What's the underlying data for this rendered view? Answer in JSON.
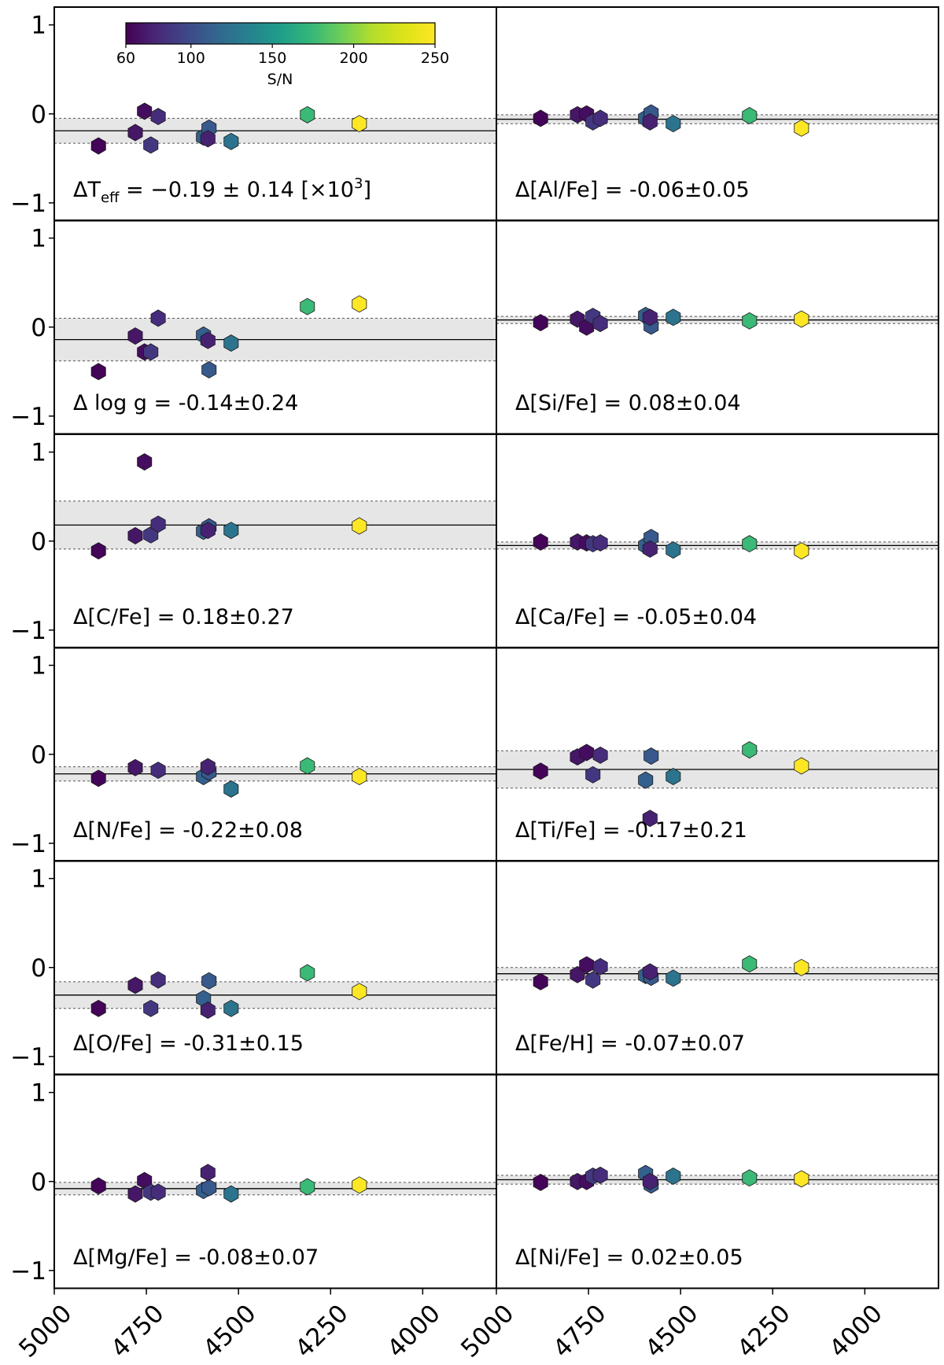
{
  "chart_data": {
    "type": "scatter",
    "layout": "6 rows x 2 columns of panels, shared x and y axes",
    "x_axis": {
      "range": [
        5000,
        3800
      ],
      "inverted": true,
      "ticks": [
        5000,
        4750,
        4500,
        4250,
        4000
      ],
      "tick_labels": [
        "5000",
        "4750",
        "4500",
        "4250",
        "4000"
      ]
    },
    "y_axis": {
      "range": [
        -1.2,
        1.2
      ],
      "ticks": [
        1,
        0,
        -1
      ],
      "tick_labels": [
        "1",
        "0",
        "−1"
      ]
    },
    "colorbar": {
      "label": "S/N",
      "range": [
        60,
        250
      ],
      "ticks": [
        60,
        100,
        150,
        200,
        250
      ],
      "tick_labels": [
        "60",
        "100",
        "150",
        "200",
        "250"
      ],
      "colormap": "viridis"
    },
    "teff_label": {
      "prefix": "ΔT",
      "sub": "eff",
      "text": " = −0.19 ± 0.14 [×10",
      "sup": "3",
      "suffix": "]"
    },
    "panels": [
      {
        "label": "",
        "mean": -0.19,
        "std": 0.14,
        "points": [
          {
            "x": 4880,
            "y": -0.36,
            "sn": 62
          },
          {
            "x": 4780,
            "y": -0.21,
            "sn": 70
          },
          {
            "x": 4755,
            "y": 0.03,
            "sn": 66
          },
          {
            "x": 4738,
            "y": -0.35,
            "sn": 88
          },
          {
            "x": 4718,
            "y": -0.03,
            "sn": 82
          },
          {
            "x": 4595,
            "y": -0.26,
            "sn": 112
          },
          {
            "x": 4580,
            "y": -0.16,
            "sn": 108
          },
          {
            "x": 4583,
            "y": -0.28,
            "sn": 76
          },
          {
            "x": 4520,
            "y": -0.31,
            "sn": 125
          },
          {
            "x": 4313,
            "y": -0.01,
            "sn": 176
          },
          {
            "x": 4172,
            "y": -0.11,
            "sn": 250
          }
        ]
      },
      {
        "label": "Δ[Al/Fe] = -0.06±0.05",
        "mean": -0.06,
        "std": 0.05,
        "points": [
          {
            "x": 4880,
            "y": -0.05,
            "sn": 62
          },
          {
            "x": 4780,
            "y": -0.01,
            "sn": 70
          },
          {
            "x": 4755,
            "y": 0.0,
            "sn": 66
          },
          {
            "x": 4738,
            "y": -0.09,
            "sn": 88
          },
          {
            "x": 4718,
            "y": -0.05,
            "sn": 82
          },
          {
            "x": 4595,
            "y": -0.05,
            "sn": 112
          },
          {
            "x": 4580,
            "y": 0.01,
            "sn": 108
          },
          {
            "x": 4583,
            "y": -0.09,
            "sn": 76
          },
          {
            "x": 4520,
            "y": -0.11,
            "sn": 125
          },
          {
            "x": 4313,
            "y": -0.02,
            "sn": 176
          },
          {
            "x": 4172,
            "y": -0.16,
            "sn": 250
          }
        ]
      },
      {
        "label": "Δ log g = -0.14±0.24",
        "mean": -0.14,
        "std": 0.24,
        "points": [
          {
            "x": 4880,
            "y": -0.5,
            "sn": 62
          },
          {
            "x": 4780,
            "y": -0.1,
            "sn": 70
          },
          {
            "x": 4755,
            "y": -0.28,
            "sn": 66
          },
          {
            "x": 4738,
            "y": -0.28,
            "sn": 88
          },
          {
            "x": 4718,
            "y": 0.1,
            "sn": 82
          },
          {
            "x": 4595,
            "y": -0.09,
            "sn": 112
          },
          {
            "x": 4580,
            "y": -0.48,
            "sn": 108
          },
          {
            "x": 4583,
            "y": -0.15,
            "sn": 76
          },
          {
            "x": 4520,
            "y": -0.18,
            "sn": 125
          },
          {
            "x": 4313,
            "y": 0.23,
            "sn": 176
          },
          {
            "x": 4172,
            "y": 0.26,
            "sn": 250
          }
        ]
      },
      {
        "label": "Δ[Si/Fe] = 0.08±0.04",
        "mean": 0.08,
        "std": 0.04,
        "points": [
          {
            "x": 4880,
            "y": 0.05,
            "sn": 62
          },
          {
            "x": 4780,
            "y": 0.09,
            "sn": 70
          },
          {
            "x": 4755,
            "y": 0.0,
            "sn": 66
          },
          {
            "x": 4738,
            "y": 0.12,
            "sn": 88
          },
          {
            "x": 4718,
            "y": 0.04,
            "sn": 82
          },
          {
            "x": 4595,
            "y": 0.13,
            "sn": 112
          },
          {
            "x": 4580,
            "y": 0.01,
            "sn": 108
          },
          {
            "x": 4583,
            "y": 0.11,
            "sn": 76
          },
          {
            "x": 4520,
            "y": 0.11,
            "sn": 125
          },
          {
            "x": 4313,
            "y": 0.07,
            "sn": 176
          },
          {
            "x": 4172,
            "y": 0.09,
            "sn": 250
          }
        ]
      },
      {
        "label": "Δ[C/Fe] = 0.18±0.27",
        "mean": 0.18,
        "std": 0.27,
        "points": [
          {
            "x": 4880,
            "y": -0.11,
            "sn": 62
          },
          {
            "x": 4780,
            "y": 0.06,
            "sn": 70
          },
          {
            "x": 4755,
            "y": 0.89,
            "sn": 66
          },
          {
            "x": 4738,
            "y": 0.07,
            "sn": 88
          },
          {
            "x": 4718,
            "y": 0.19,
            "sn": 82
          },
          {
            "x": 4595,
            "y": 0.11,
            "sn": 112
          },
          {
            "x": 4580,
            "y": 0.16,
            "sn": 108
          },
          {
            "x": 4583,
            "y": 0.12,
            "sn": 76
          },
          {
            "x": 4520,
            "y": 0.12,
            "sn": 125
          },
          {
            "x": 4172,
            "y": 0.17,
            "sn": 250
          }
        ]
      },
      {
        "label": "Δ[Ca/Fe] = -0.05±0.04",
        "mean": -0.05,
        "std": 0.04,
        "points": [
          {
            "x": 4880,
            "y": -0.01,
            "sn": 62
          },
          {
            "x": 4780,
            "y": -0.01,
            "sn": 70
          },
          {
            "x": 4755,
            "y": -0.02,
            "sn": 66
          },
          {
            "x": 4738,
            "y": -0.03,
            "sn": 88
          },
          {
            "x": 4718,
            "y": -0.02,
            "sn": 82
          },
          {
            "x": 4595,
            "y": -0.05,
            "sn": 112
          },
          {
            "x": 4580,
            "y": 0.04,
            "sn": 108
          },
          {
            "x": 4583,
            "y": -0.09,
            "sn": 76
          },
          {
            "x": 4520,
            "y": -0.1,
            "sn": 125
          },
          {
            "x": 4313,
            "y": -0.03,
            "sn": 176
          },
          {
            "x": 4172,
            "y": -0.11,
            "sn": 250
          }
        ]
      },
      {
        "label": "Δ[N/Fe] = -0.22±0.08",
        "mean": -0.22,
        "std": 0.08,
        "points": [
          {
            "x": 4880,
            "y": -0.27,
            "sn": 62
          },
          {
            "x": 4780,
            "y": -0.15,
            "sn": 70
          },
          {
            "x": 4718,
            "y": -0.18,
            "sn": 82
          },
          {
            "x": 4595,
            "y": -0.25,
            "sn": 112
          },
          {
            "x": 4580,
            "y": -0.2,
            "sn": 108
          },
          {
            "x": 4583,
            "y": -0.14,
            "sn": 76
          },
          {
            "x": 4520,
            "y": -0.39,
            "sn": 125
          },
          {
            "x": 4313,
            "y": -0.13,
            "sn": 176
          },
          {
            "x": 4172,
            "y": -0.25,
            "sn": 250
          }
        ]
      },
      {
        "label": "Δ[Ti/Fe] = -0.17±0.21",
        "mean": -0.17,
        "std": 0.21,
        "points": [
          {
            "x": 4880,
            "y": -0.19,
            "sn": 62
          },
          {
            "x": 4780,
            "y": -0.03,
            "sn": 70
          },
          {
            "x": 4755,
            "y": 0.02,
            "sn": 66
          },
          {
            "x": 4738,
            "y": -0.23,
            "sn": 88
          },
          {
            "x": 4718,
            "y": -0.01,
            "sn": 82
          },
          {
            "x": 4595,
            "y": -0.29,
            "sn": 112
          },
          {
            "x": 4580,
            "y": -0.02,
            "sn": 108
          },
          {
            "x": 4583,
            "y": -0.72,
            "sn": 76
          },
          {
            "x": 4520,
            "y": -0.25,
            "sn": 125
          },
          {
            "x": 4313,
            "y": 0.05,
            "sn": 176
          },
          {
            "x": 4172,
            "y": -0.13,
            "sn": 250
          }
        ]
      },
      {
        "label": "Δ[O/Fe] = -0.31±0.15",
        "mean": -0.31,
        "std": 0.15,
        "points": [
          {
            "x": 4880,
            "y": -0.46,
            "sn": 62
          },
          {
            "x": 4780,
            "y": -0.2,
            "sn": 70
          },
          {
            "x": 4738,
            "y": -0.46,
            "sn": 88
          },
          {
            "x": 4718,
            "y": -0.14,
            "sn": 82
          },
          {
            "x": 4595,
            "y": -0.35,
            "sn": 112
          },
          {
            "x": 4580,
            "y": -0.15,
            "sn": 108
          },
          {
            "x": 4583,
            "y": -0.48,
            "sn": 76
          },
          {
            "x": 4520,
            "y": -0.46,
            "sn": 125
          },
          {
            "x": 4313,
            "y": -0.06,
            "sn": 176
          },
          {
            "x": 4172,
            "y": -0.27,
            "sn": 250
          }
        ]
      },
      {
        "label": "Δ[Fe/H] = -0.07±0.07",
        "mean": -0.07,
        "std": 0.07,
        "points": [
          {
            "x": 4880,
            "y": -0.16,
            "sn": 62
          },
          {
            "x": 4780,
            "y": -0.08,
            "sn": 70
          },
          {
            "x": 4755,
            "y": 0.03,
            "sn": 66
          },
          {
            "x": 4738,
            "y": -0.14,
            "sn": 88
          },
          {
            "x": 4718,
            "y": 0.01,
            "sn": 82
          },
          {
            "x": 4595,
            "y": -0.09,
            "sn": 112
          },
          {
            "x": 4580,
            "y": -0.11,
            "sn": 108
          },
          {
            "x": 4583,
            "y": -0.05,
            "sn": 76
          },
          {
            "x": 4520,
            "y": -0.12,
            "sn": 125
          },
          {
            "x": 4313,
            "y": 0.04,
            "sn": 176
          },
          {
            "x": 4172,
            "y": 0.0,
            "sn": 250
          }
        ]
      },
      {
        "label": "Δ[Mg/Fe] = -0.08±0.07",
        "mean": -0.08,
        "std": 0.07,
        "points": [
          {
            "x": 4880,
            "y": -0.05,
            "sn": 62
          },
          {
            "x": 4780,
            "y": -0.14,
            "sn": 70
          },
          {
            "x": 4755,
            "y": 0.01,
            "sn": 66
          },
          {
            "x": 4738,
            "y": -0.12,
            "sn": 88
          },
          {
            "x": 4718,
            "y": -0.12,
            "sn": 82
          },
          {
            "x": 4595,
            "y": -0.1,
            "sn": 112
          },
          {
            "x": 4580,
            "y": -0.07,
            "sn": 108
          },
          {
            "x": 4583,
            "y": 0.1,
            "sn": 76
          },
          {
            "x": 4520,
            "y": -0.14,
            "sn": 125
          },
          {
            "x": 4313,
            "y": -0.06,
            "sn": 176
          },
          {
            "x": 4172,
            "y": -0.04,
            "sn": 250
          }
        ]
      },
      {
        "label": "Δ[Ni/Fe] = 0.02±0.05",
        "mean": 0.02,
        "std": 0.05,
        "points": [
          {
            "x": 4880,
            "y": -0.01,
            "sn": 62
          },
          {
            "x": 4780,
            "y": 0.0,
            "sn": 70
          },
          {
            "x": 4755,
            "y": 0.0,
            "sn": 66
          },
          {
            "x": 4738,
            "y": 0.06,
            "sn": 88
          },
          {
            "x": 4718,
            "y": 0.07,
            "sn": 82
          },
          {
            "x": 4595,
            "y": 0.09,
            "sn": 112
          },
          {
            "x": 4580,
            "y": -0.04,
            "sn": 108
          },
          {
            "x": 4583,
            "y": 0.0,
            "sn": 76
          },
          {
            "x": 4520,
            "y": 0.06,
            "sn": 125
          },
          {
            "x": 4313,
            "y": 0.04,
            "sn": 176
          },
          {
            "x": 4172,
            "y": 0.03,
            "sn": 250
          }
        ]
      }
    ]
  }
}
